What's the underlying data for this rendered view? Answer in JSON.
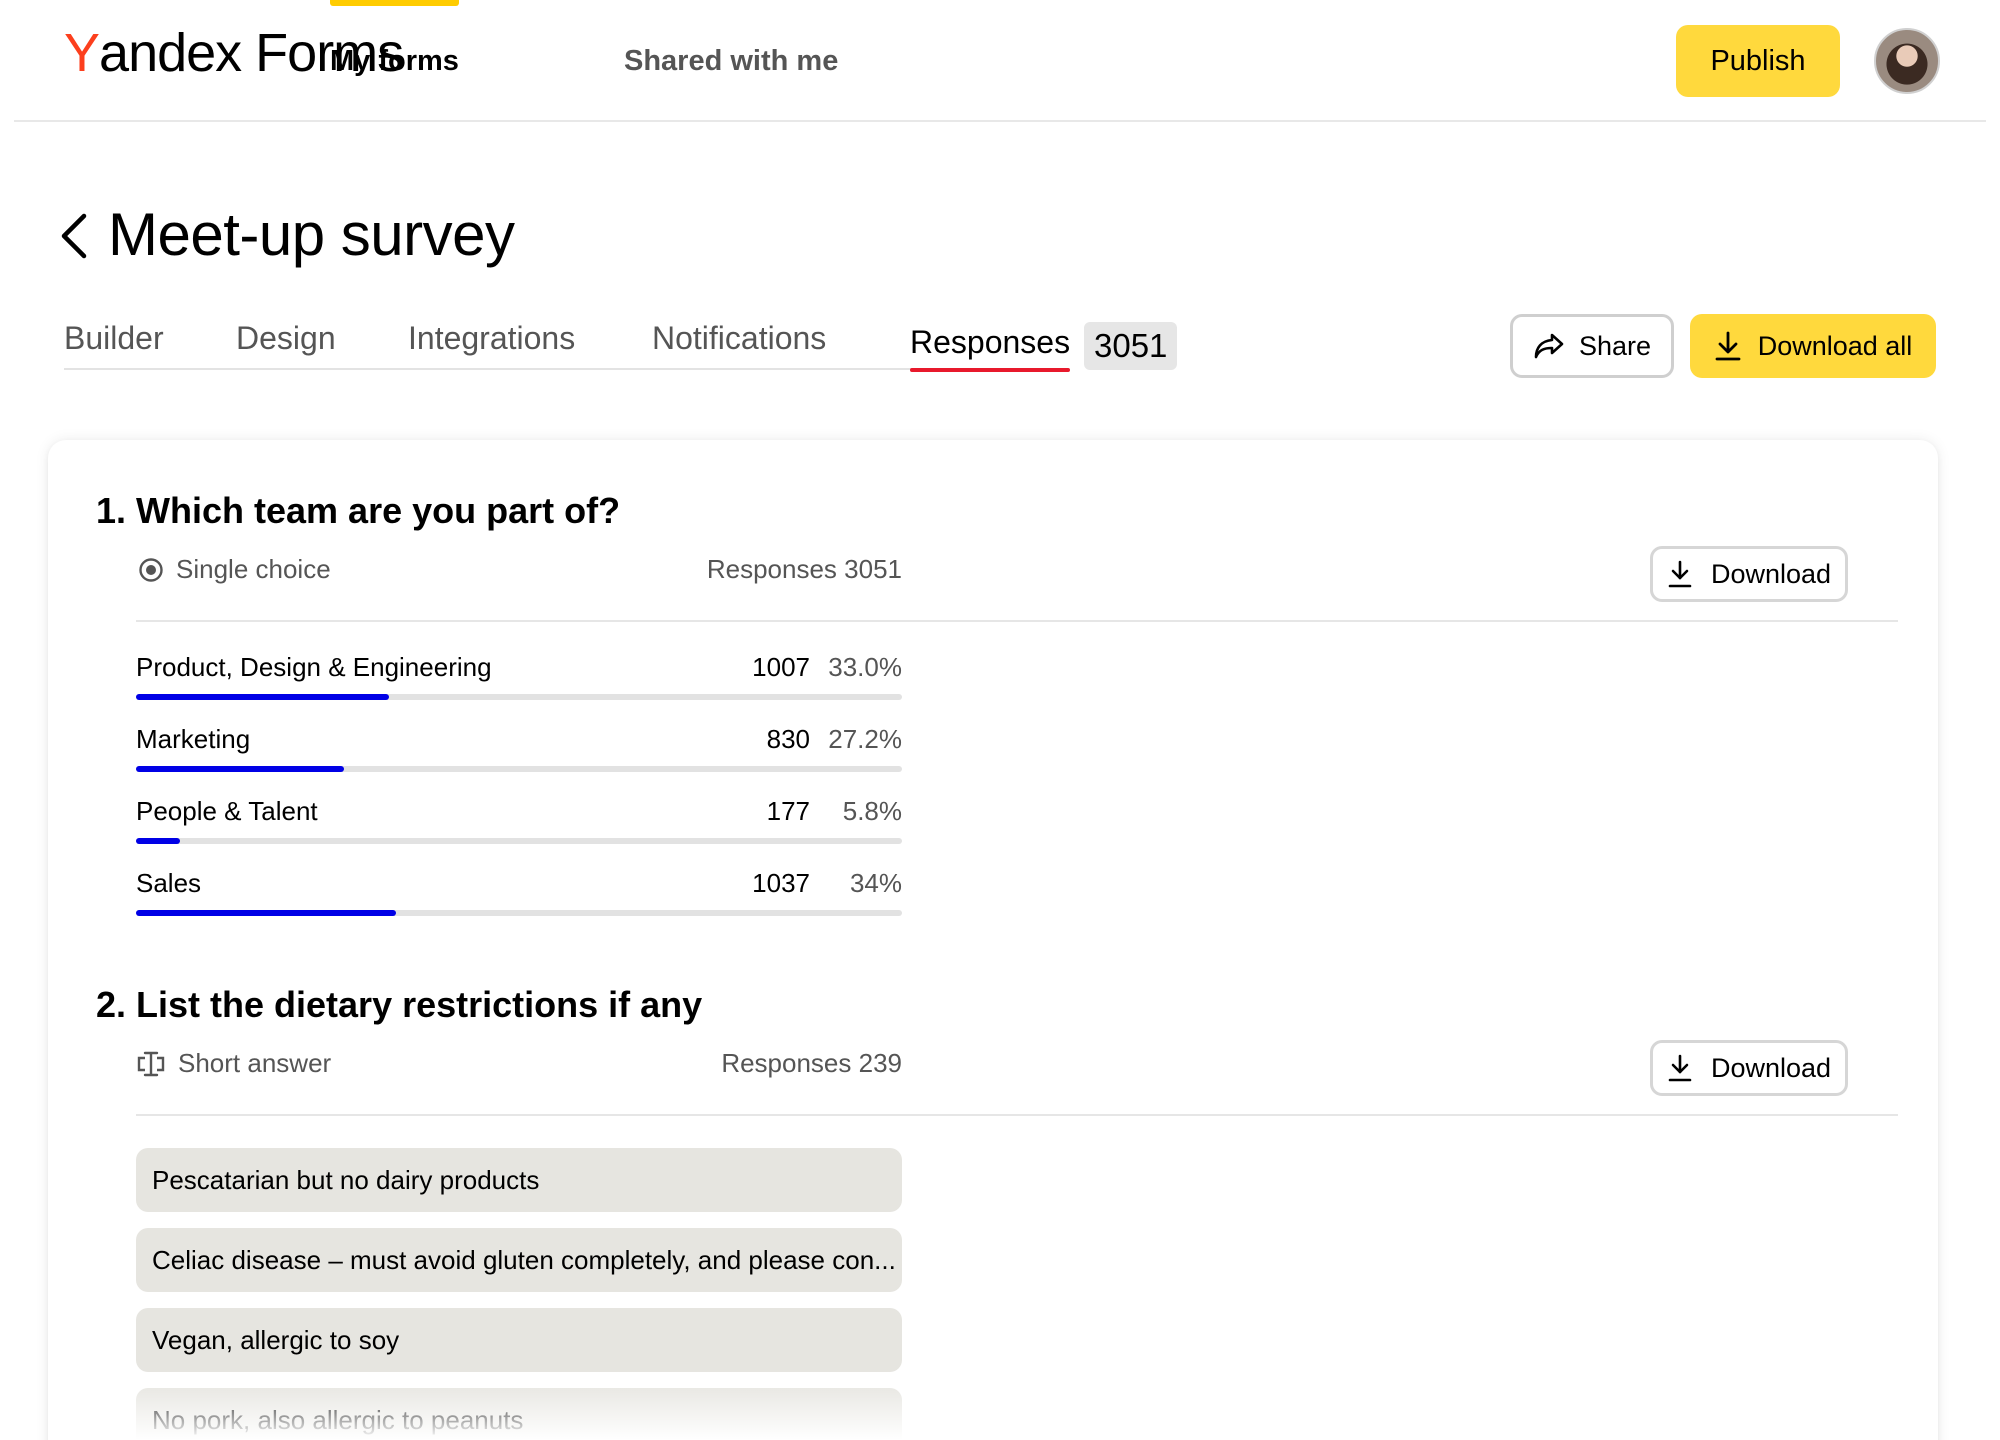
{
  "header": {
    "logo": {
      "y": "Y",
      "rest": "andex",
      "forms": "Forms"
    },
    "nav": [
      {
        "label": "My forms",
        "active": true
      },
      {
        "label": "Shared with me",
        "active": false
      }
    ],
    "publish_label": "Publish"
  },
  "form": {
    "title": "Meet-up survey",
    "tabs": [
      {
        "label": "Builder"
      },
      {
        "label": "Design"
      },
      {
        "label": "Integrations"
      },
      {
        "label": "Notifications"
      },
      {
        "label": "Responses",
        "active": true
      }
    ],
    "responses_count": "3051",
    "share_label": "Share",
    "download_all_label": "Download all"
  },
  "questions": [
    {
      "title": "1. Which team are you part of?",
      "type": "Single choice",
      "responses": "Responses 3051",
      "download_label": "Download",
      "options": [
        {
          "label": "Product, Design & Engineering",
          "count": "1007",
          "pct": "33.0%",
          "share": 0.33
        },
        {
          "label": "Marketing",
          "count": "830",
          "pct": "27.2%",
          "share": 0.272
        },
        {
          "label": "People & Talent",
          "count": "177",
          "pct": "5.8%",
          "share": 0.058
        },
        {
          "label": "Sales",
          "count": "1037",
          "pct": "34%",
          "share": 0.34
        }
      ]
    },
    {
      "title": "2. List the dietary restrictions if any",
      "type": "Short answer",
      "responses": "Responses 239",
      "download_label": "Download",
      "answers": [
        "Pescatarian but no dairy products",
        "Celiac disease – must avoid gluten completely, and please con...",
        "Vegan, allergic to soy",
        "No pork, also allergic to peanuts"
      ]
    }
  ],
  "colors": {
    "accent_yellow": "#ffd93d",
    "active_tab_underline": "#e8192c",
    "bar_fill": "#0000e6",
    "logo_red": "#fc3f1d"
  }
}
